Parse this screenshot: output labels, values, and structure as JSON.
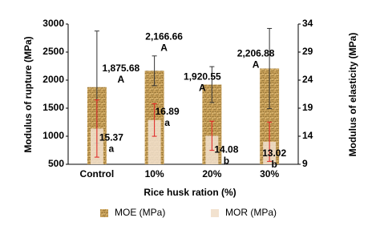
{
  "chart_data": {
    "type": "bar",
    "x_label": "Rice husk ration (%)",
    "y_label": "Modulus of rupture (MPa)",
    "y2_label": "Modulus of elasticity (MPa)",
    "categories": [
      "Control",
      "10%",
      "20%",
      "30%"
    ],
    "ylim": [
      500,
      3000
    ],
    "yticks": [
      500,
      1000,
      1500,
      2000,
      2500,
      3000
    ],
    "y2lim": [
      9,
      34
    ],
    "y2ticks": [
      9,
      14,
      19,
      24,
      29,
      34
    ],
    "legend": "bottom",
    "series": [
      {
        "name": "MOE (MPa)",
        "color": "#c9a15a",
        "values": [
          1875.68,
          2166.66,
          1920.55,
          2206.88
        ],
        "value_labels": [
          "1,875.68",
          "2,166.66",
          "1,920.55",
          "2,206.88"
        ],
        "errors": [
          1000,
          265,
          320,
          715
        ],
        "error_color": "#333333",
        "letters": [
          "A",
          "A",
          "A",
          "A"
        ]
      },
      {
        "name": "MOR (MPa)",
        "color": "#f2e2cf",
        "axis": "y2",
        "values": [
          15.37,
          16.89,
          14.08,
          13.02
        ],
        "errors": [
          5.1,
          2.9,
          2.6,
          3.5
        ],
        "error_color": "#e02020",
        "letters": [
          "a",
          "a",
          "b",
          "b"
        ]
      }
    ]
  }
}
